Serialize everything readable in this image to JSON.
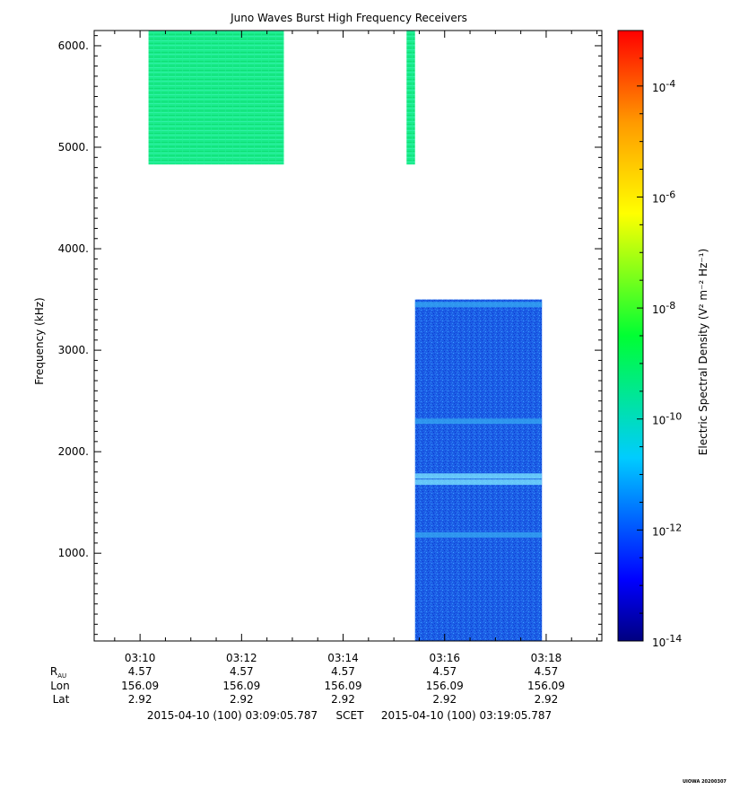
{
  "chart_data": {
    "type": "heatmap",
    "title": "Juno Waves Burst High Frequency Receivers",
    "ylabel": "Frequency (kHz)",
    "colorbar_label": "Electric Spectral Density (V² m⁻² Hz⁻¹)",
    "ylim": [
      135,
      6150
    ],
    "y_ticks": [
      {
        "value": 1000,
        "label": "1000."
      },
      {
        "value": 2000,
        "label": "2000."
      },
      {
        "value": 3000,
        "label": "3000."
      },
      {
        "value": 4000,
        "label": "4000."
      },
      {
        "value": 5000,
        "label": "5000."
      },
      {
        "value": 6000,
        "label": "6000."
      }
    ],
    "time_range": [
      "03:09:05.787",
      "03:19:05.787"
    ],
    "x_ticks": [
      {
        "time": "03:10",
        "rau": "4.57",
        "lon": "156.09",
        "lat": "2.92"
      },
      {
        "time": "03:12",
        "rau": "4.57",
        "lon": "156.09",
        "lat": "2.92"
      },
      {
        "time": "03:14",
        "rau": "4.57",
        "lon": "156.09",
        "lat": "2.92"
      },
      {
        "time": "03:16",
        "rau": "4.57",
        "lon": "156.09",
        "lat": "2.92"
      },
      {
        "time": "03:18",
        "rau": "4.57",
        "lon": "156.09",
        "lat": "2.92"
      }
    ],
    "row_labels": {
      "rau": "R",
      "rau_sub": "AU",
      "lon": "Lon",
      "lat": "Lat"
    },
    "colorbar": {
      "scale": "log",
      "range": [
        -14,
        -3
      ],
      "ticks": [
        {
          "exp": -4,
          "label": "10",
          "sup": "-4"
        },
        {
          "exp": -6,
          "label": "10",
          "sup": "-6"
        },
        {
          "exp": -8,
          "label": "10",
          "sup": "-8"
        },
        {
          "exp": -10,
          "label": "10",
          "sup": "-10"
        },
        {
          "exp": -12,
          "label": "10",
          "sup": "-12"
        },
        {
          "exp": -14,
          "label": "10",
          "sup": "-14"
        }
      ]
    },
    "data_blocks": [
      {
        "t_start": "03:10:10",
        "t_end": "03:12:50",
        "f_low": 4830,
        "f_high": 6150,
        "log_density": -10.3,
        "style": "green-banded"
      },
      {
        "t_start": "03:15:15",
        "t_end": "03:15:25",
        "f_low": 4830,
        "f_high": 6150,
        "log_density": -10.3,
        "style": "green-banded"
      },
      {
        "t_start": "03:15:25",
        "t_end": "03:17:55",
        "f_low": 135,
        "f_high": 3500,
        "log_density": -12.3,
        "style": "blue-noise"
      }
    ],
    "bands": [
      {
        "f": 1700,
        "log_density": -11.2
      },
      {
        "f": 1760,
        "log_density": -11.0
      },
      {
        "f": 2300,
        "log_density": -11.8
      },
      {
        "f": 1180,
        "log_density": -11.9
      },
      {
        "f": 3450,
        "log_density": -11.6
      }
    ]
  },
  "footer": {
    "start": "2015-04-10 (100) 03:09:05.787",
    "scet": "SCET",
    "end": "2015-04-10 (100) 03:19:05.787"
  },
  "credit": "UIOWA 20200307",
  "colors": {
    "green_fill": "#19ec8a",
    "blue_fill": "#1a5fe8",
    "axis": "#000000"
  }
}
